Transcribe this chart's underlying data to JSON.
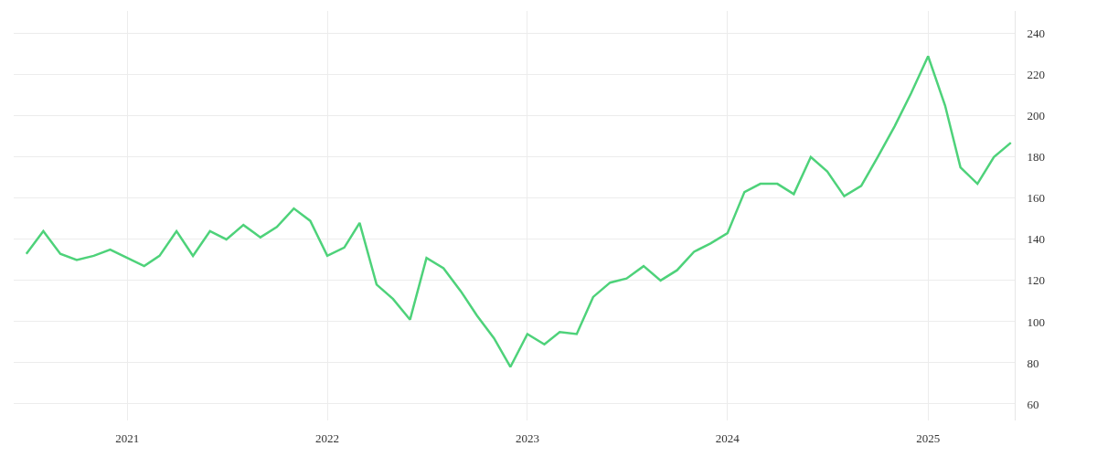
{
  "chart_data": {
    "type": "line",
    "x": [
      "2020-07",
      "2020-08",
      "2020-09",
      "2020-10",
      "2020-11",
      "2020-12",
      "2021-01",
      "2021-02",
      "2021-03",
      "2021-04",
      "2021-05",
      "2021-06",
      "2021-07",
      "2021-08",
      "2021-09",
      "2021-10",
      "2021-11",
      "2021-12",
      "2022-01",
      "2022-02",
      "2022-03",
      "2022-04",
      "2022-05",
      "2022-06",
      "2022-07",
      "2022-08",
      "2022-09",
      "2022-10",
      "2022-11",
      "2022-12",
      "2023-01",
      "2023-02",
      "2023-03",
      "2023-04",
      "2023-05",
      "2023-06",
      "2023-07",
      "2023-08",
      "2023-09",
      "2023-10",
      "2023-11",
      "2023-12",
      "2024-01",
      "2024-02",
      "2024-03",
      "2024-04",
      "2024-05",
      "2024-06",
      "2024-07",
      "2024-08",
      "2024-09",
      "2024-10",
      "2024-11",
      "2024-12",
      "2025-01",
      "2025-02",
      "2025-03",
      "2025-04",
      "2025-05",
      "2025-06"
    ],
    "series": [
      {
        "color": "#4ed27a",
        "values": [
          133,
          144,
          133,
          130,
          132,
          135,
          131,
          127,
          132,
          144,
          132,
          144,
          140,
          147,
          141,
          146,
          155,
          149,
          132,
          136,
          148,
          118,
          111,
          101,
          131,
          126,
          115,
          103,
          92,
          78,
          94,
          89,
          95,
          94,
          112,
          119,
          121,
          127,
          120,
          125,
          134,
          138,
          143,
          163,
          167,
          167,
          162,
          180,
          173,
          161,
          166,
          180,
          195,
          211,
          229,
          205,
          175,
          167,
          180,
          187
        ]
      }
    ],
    "xlim": [
      "2020-06-08",
      "2025-06-08"
    ],
    "xticks": [
      {
        "value": "2021-01-01",
        "label": "2021"
      },
      {
        "value": "2022-01-01",
        "label": "2022"
      },
      {
        "value": "2023-01-01",
        "label": "2023"
      },
      {
        "value": "2024-01-01",
        "label": "2024"
      },
      {
        "value": "2025-01-01",
        "label": "2025"
      }
    ],
    "ylim": [
      52,
      251
    ],
    "yticks": [
      60,
      80,
      100,
      120,
      140,
      160,
      180,
      200,
      220,
      240
    ],
    "grid": true,
    "marker": "none",
    "line_style": "solid"
  }
}
